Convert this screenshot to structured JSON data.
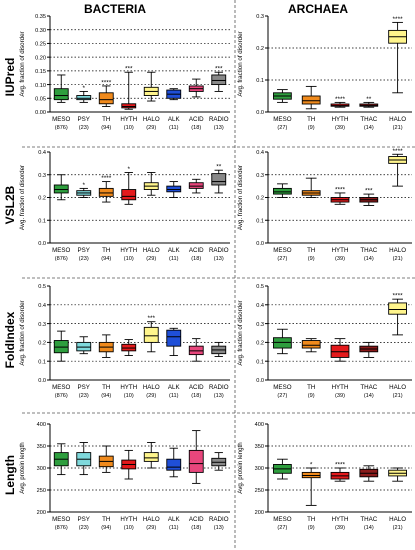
{
  "figure": {
    "column_titles": [
      "BACTERIA",
      "ARCHAEA"
    ],
    "row_titles": [
      "IUPred",
      "VSL2B",
      "FoldIndex",
      "Length"
    ]
  },
  "chart_data": [
    {
      "type": "box",
      "panel": "bacteria-iupred",
      "ylabel": "Avg. fraction of disorder",
      "ylim": [
        0,
        0.35
      ],
      "yticks": [
        0.0,
        0.05,
        0.1,
        0.15,
        0.2,
        0.25,
        0.3,
        0.35
      ],
      "ytick_labels": [
        "0.00",
        "0.05",
        "0.10",
        "0.15",
        "0.20",
        "0.25",
        "0.30",
        "0.35"
      ],
      "gridlines": [
        0.05,
        0.1,
        0.15,
        0.2,
        0.25,
        0.3
      ],
      "categories": [
        "MESO",
        "PSY",
        "TH",
        "HYTH",
        "HALO",
        "ALK",
        "ACID",
        "RADIO"
      ],
      "counts": [
        "(876)",
        "(23)",
        "(94)",
        "(10)",
        "(29)",
        "(11)",
        "(18)",
        "(13)"
      ],
      "colors": [
        "#2e9e3e",
        "#7fd9dc",
        "#f08a1c",
        "#e41a1c",
        "#fff58c",
        "#1f4fd8",
        "#e8467c",
        "#888888"
      ],
      "boxes": [
        {
          "min": 0.035,
          "q1": 0.045,
          "median": 0.06,
          "q3": 0.085,
          "max": 0.135,
          "stars": ""
        },
        {
          "min": 0.035,
          "q1": 0.045,
          "median": 0.05,
          "q3": 0.06,
          "max": 0.075,
          "stars": "*"
        },
        {
          "min": 0.02,
          "q1": 0.03,
          "median": 0.045,
          "q3": 0.07,
          "max": 0.095,
          "stars": "****"
        },
        {
          "min": 0.01,
          "q1": 0.015,
          "median": 0.02,
          "q3": 0.03,
          "max": 0.145,
          "stars": "***"
        },
        {
          "min": 0.04,
          "q1": 0.06,
          "median": 0.075,
          "q3": 0.09,
          "max": 0.145,
          "stars": ""
        },
        {
          "min": 0.045,
          "q1": 0.05,
          "median": 0.065,
          "q3": 0.08,
          "max": 0.085,
          "stars": ""
        },
        {
          "min": 0.055,
          "q1": 0.075,
          "median": 0.085,
          "q3": 0.095,
          "max": 0.12,
          "stars": ""
        },
        {
          "min": 0.075,
          "q1": 0.1,
          "median": 0.115,
          "q3": 0.135,
          "max": 0.145,
          "stars": "***"
        }
      ]
    },
    {
      "type": "box",
      "panel": "archaea-iupred",
      "ylabel": "Avg. fraction of disorder",
      "ylim": [
        0,
        0.3
      ],
      "yticks": [
        0.0,
        0.1,
        0.2,
        0.3
      ],
      "ytick_labels": [
        "0.0",
        "0.1",
        "0.2",
        "0.3"
      ],
      "gridlines": [
        0.1,
        0.2
      ],
      "categories": [
        "MESO",
        "TH",
        "HYTH",
        "THAC",
        "HALO"
      ],
      "counts": [
        "(27)",
        "(9)",
        "(39)",
        "(14)",
        "(21)"
      ],
      "colors": [
        "#2e9e3e",
        "#f08a1c",
        "#e41a1c",
        "#8b1a1a",
        "#fff58c"
      ],
      "boxes": [
        {
          "min": 0.03,
          "q1": 0.04,
          "median": 0.05,
          "q3": 0.06,
          "max": 0.07,
          "stars": ""
        },
        {
          "min": 0.01,
          "q1": 0.025,
          "median": 0.035,
          "q3": 0.05,
          "max": 0.08,
          "stars": ""
        },
        {
          "min": 0.015,
          "q1": 0.018,
          "median": 0.02,
          "q3": 0.025,
          "max": 0.03,
          "stars": "****"
        },
        {
          "min": 0.015,
          "q1": 0.018,
          "median": 0.02,
          "q3": 0.025,
          "max": 0.03,
          "stars": "**"
        },
        {
          "min": 0.06,
          "q1": 0.215,
          "median": 0.235,
          "q3": 0.255,
          "max": 0.28,
          "stars": "****"
        }
      ]
    },
    {
      "type": "box",
      "panel": "bacteria-vsl2b",
      "ylabel": "Avg. fraction of disorder",
      "ylim": [
        0,
        0.4
      ],
      "yticks": [
        0.0,
        0.1,
        0.2,
        0.3,
        0.4
      ],
      "ytick_labels": [
        "0.0",
        "0.1",
        "0.2",
        "0.3",
        "0.4"
      ],
      "gridlines": [
        0.1,
        0.2,
        0.3
      ],
      "categories": [
        "MESO",
        "PSY",
        "TH",
        "HYTH",
        "HALO",
        "ALK",
        "ACID",
        "RADIO"
      ],
      "counts": [
        "(876)",
        "(23)",
        "(94)",
        "(10)",
        "(29)",
        "(11)",
        "(18)",
        "(13)"
      ],
      "colors": [
        "#2e9e3e",
        "#7fd9dc",
        "#f08a1c",
        "#e41a1c",
        "#fff58c",
        "#1f4fd8",
        "#e8467c",
        "#888888"
      ],
      "boxes": [
        {
          "min": 0.19,
          "q1": 0.22,
          "median": 0.235,
          "q3": 0.255,
          "max": 0.3,
          "stars": ""
        },
        {
          "min": 0.2,
          "q1": 0.21,
          "median": 0.22,
          "q3": 0.23,
          "max": 0.24,
          "stars": "*"
        },
        {
          "min": 0.18,
          "q1": 0.205,
          "median": 0.22,
          "q3": 0.24,
          "max": 0.27,
          "stars": "****"
        },
        {
          "min": 0.17,
          "q1": 0.19,
          "median": 0.205,
          "q3": 0.235,
          "max": 0.31,
          "stars": "*"
        },
        {
          "min": 0.21,
          "q1": 0.235,
          "median": 0.25,
          "q3": 0.265,
          "max": 0.31,
          "stars": ""
        },
        {
          "min": 0.2,
          "q1": 0.225,
          "median": 0.235,
          "q3": 0.25,
          "max": 0.27,
          "stars": ""
        },
        {
          "min": 0.22,
          "q1": 0.24,
          "median": 0.25,
          "q3": 0.265,
          "max": 0.28,
          "stars": ""
        },
        {
          "min": 0.22,
          "q1": 0.255,
          "median": 0.27,
          "q3": 0.305,
          "max": 0.32,
          "stars": "**"
        }
      ]
    },
    {
      "type": "box",
      "panel": "archaea-vsl2b",
      "ylabel": "Avg. fraction of disorder",
      "ylim": [
        0,
        0.4
      ],
      "yticks": [
        0.0,
        0.1,
        0.2,
        0.3,
        0.4
      ],
      "ytick_labels": [
        "0.0",
        "0.1",
        "0.2",
        "0.3",
        "0.4"
      ],
      "gridlines": [
        0.1,
        0.2,
        0.3
      ],
      "categories": [
        "MESO",
        "TH",
        "HYTH",
        "THAC",
        "HALO"
      ],
      "counts": [
        "(27)",
        "(9)",
        "(39)",
        "(14)",
        "(21)"
      ],
      "colors": [
        "#2e9e3e",
        "#f08a1c",
        "#e41a1c",
        "#8b1a1a",
        "#fff58c"
      ],
      "boxes": [
        {
          "min": 0.2,
          "q1": 0.215,
          "median": 0.225,
          "q3": 0.24,
          "max": 0.26,
          "stars": ""
        },
        {
          "min": 0.2,
          "q1": 0.21,
          "median": 0.22,
          "q3": 0.23,
          "max": 0.285,
          "stars": ""
        },
        {
          "min": 0.17,
          "q1": 0.18,
          "median": 0.19,
          "q3": 0.2,
          "max": 0.22,
          "stars": "****"
        },
        {
          "min": 0.165,
          "q1": 0.18,
          "median": 0.19,
          "q3": 0.2,
          "max": 0.215,
          "stars": "***"
        },
        {
          "min": 0.25,
          "q1": 0.35,
          "median": 0.365,
          "q3": 0.38,
          "max": 0.39,
          "stars": "****"
        }
      ]
    },
    {
      "type": "box",
      "panel": "bacteria-foldindex",
      "ylabel": "Avg. fraction of disorder",
      "ylim": [
        0,
        0.5
      ],
      "yticks": [
        0.0,
        0.1,
        0.2,
        0.3,
        0.4,
        0.5
      ],
      "ytick_labels": [
        "0.0",
        "0.1",
        "0.2",
        "0.3",
        "0.4",
        "0.5"
      ],
      "gridlines": [
        0.1,
        0.2,
        0.3,
        0.4
      ],
      "categories": [
        "MESO",
        "PSY",
        "TH",
        "HYTH",
        "HALO",
        "ALK",
        "ACID",
        "RADIO"
      ],
      "counts": [
        "(876)",
        "(23)",
        "(94)",
        "(10)",
        "(29)",
        "(11)",
        "(18)",
        "(13)"
      ],
      "colors": [
        "#2e9e3e",
        "#7fd9dc",
        "#f08a1c",
        "#e41a1c",
        "#fff58c",
        "#1f4fd8",
        "#e8467c",
        "#888888"
      ],
      "boxes": [
        {
          "min": 0.1,
          "q1": 0.145,
          "median": 0.175,
          "q3": 0.21,
          "max": 0.26,
          "stars": ""
        },
        {
          "min": 0.14,
          "q1": 0.155,
          "median": 0.175,
          "q3": 0.2,
          "max": 0.23,
          "stars": ""
        },
        {
          "min": 0.12,
          "q1": 0.15,
          "median": 0.175,
          "q3": 0.2,
          "max": 0.24,
          "stars": ""
        },
        {
          "min": 0.13,
          "q1": 0.155,
          "median": 0.17,
          "q3": 0.19,
          "max": 0.215,
          "stars": ""
        },
        {
          "min": 0.15,
          "q1": 0.2,
          "median": 0.235,
          "q3": 0.28,
          "max": 0.31,
          "stars": "***"
        },
        {
          "min": 0.13,
          "q1": 0.18,
          "median": 0.23,
          "q3": 0.265,
          "max": 0.275,
          "stars": ""
        },
        {
          "min": 0.1,
          "q1": 0.135,
          "median": 0.155,
          "q3": 0.18,
          "max": 0.22,
          "stars": ""
        },
        {
          "min": 0.125,
          "q1": 0.14,
          "median": 0.16,
          "q3": 0.18,
          "max": 0.2,
          "stars": ""
        }
      ]
    },
    {
      "type": "box",
      "panel": "archaea-foldindex",
      "ylabel": "Avg. fraction of disorder",
      "ylim": [
        0,
        0.5
      ],
      "yticks": [
        0.0,
        0.1,
        0.2,
        0.3,
        0.4,
        0.5
      ],
      "ytick_labels": [
        "0.0",
        "0.1",
        "0.2",
        "0.3",
        "0.4",
        "0.5"
      ],
      "gridlines": [
        0.1,
        0.2,
        0.3,
        0.4
      ],
      "categories": [
        "MESO",
        "TH",
        "HYTH",
        "THAC",
        "HALO"
      ],
      "counts": [
        "(27)",
        "(9)",
        "(39)",
        "(14)",
        "(21)"
      ],
      "colors": [
        "#2e9e3e",
        "#f08a1c",
        "#e41a1c",
        "#8b1a1a",
        "#fff58c"
      ],
      "boxes": [
        {
          "min": 0.14,
          "q1": 0.17,
          "median": 0.2,
          "q3": 0.225,
          "max": 0.27,
          "stars": ""
        },
        {
          "min": 0.15,
          "q1": 0.17,
          "median": 0.185,
          "q3": 0.21,
          "max": 0.22,
          "stars": ""
        },
        {
          "min": 0.1,
          "q1": 0.12,
          "median": 0.15,
          "q3": 0.185,
          "max": 0.22,
          "stars": ""
        },
        {
          "min": 0.12,
          "q1": 0.15,
          "median": 0.165,
          "q3": 0.18,
          "max": 0.2,
          "stars": ""
        },
        {
          "min": 0.24,
          "q1": 0.35,
          "median": 0.375,
          "q3": 0.41,
          "max": 0.43,
          "stars": "****"
        }
      ]
    },
    {
      "type": "box",
      "panel": "bacteria-length",
      "ylabel": "Avg. protein length",
      "ylim": [
        200,
        400
      ],
      "yticks": [
        200,
        250,
        300,
        350,
        400
      ],
      "ytick_labels": [
        "200",
        "250",
        "300",
        "350",
        "400"
      ],
      "gridlines": [
        250,
        300,
        350
      ],
      "categories": [
        "MESO",
        "PSY",
        "TH",
        "HYTH",
        "HALO",
        "ALK",
        "ACID",
        "RADIO"
      ],
      "counts": [
        "(876)",
        "(23)",
        "(94)",
        "(10)",
        "(29)",
        "(11)",
        "(18)",
        "(13)"
      ],
      "colors": [
        "#2e9e3e",
        "#7fd9dc",
        "#f08a1c",
        "#e41a1c",
        "#fff58c",
        "#1f4fd8",
        "#e8467c",
        "#888888"
      ],
      "boxes": [
        {
          "min": 285,
          "q1": 305,
          "median": 320,
          "q3": 335,
          "max": 355,
          "stars": ""
        },
        {
          "min": 285,
          "q1": 305,
          "median": 320,
          "q3": 335,
          "max": 358,
          "stars": ""
        },
        {
          "min": 290,
          "q1": 303,
          "median": 315,
          "q3": 327,
          "max": 350,
          "stars": ""
        },
        {
          "min": 275,
          "q1": 298,
          "median": 308,
          "q3": 318,
          "max": 340,
          "stars": ""
        },
        {
          "min": 300,
          "q1": 315,
          "median": 323,
          "q3": 335,
          "max": 358,
          "stars": ""
        },
        {
          "min": 280,
          "q1": 295,
          "median": 302,
          "q3": 320,
          "max": 345,
          "stars": ""
        },
        {
          "min": 265,
          "q1": 290,
          "median": 310,
          "q3": 340,
          "max": 385,
          "stars": ""
        },
        {
          "min": 295,
          "q1": 305,
          "median": 313,
          "q3": 322,
          "max": 335,
          "stars": ""
        }
      ]
    },
    {
      "type": "box",
      "panel": "archaea-length",
      "ylabel": "Avg. protein length",
      "ylim": [
        200,
        400
      ],
      "yticks": [
        200,
        250,
        300,
        350,
        400
      ],
      "ytick_labels": [
        "200",
        "250",
        "300",
        "350",
        "400"
      ],
      "gridlines": [
        250,
        300,
        350
      ],
      "categories": [
        "MESO",
        "TH",
        "HYTH",
        "THAC",
        "HALO"
      ],
      "counts": [
        "(27)",
        "(9)",
        "(39)",
        "(14)",
        "(21)"
      ],
      "colors": [
        "#2e9e3e",
        "#f08a1c",
        "#e41a1c",
        "#8b1a1a",
        "#fff58c"
      ],
      "boxes": [
        {
          "min": 275,
          "q1": 288,
          "median": 298,
          "q3": 308,
          "max": 320,
          "stars": ""
        },
        {
          "min": 215,
          "q1": 278,
          "median": 283,
          "q3": 290,
          "max": 300,
          "stars": "*"
        },
        {
          "min": 270,
          "q1": 275,
          "median": 282,
          "q3": 290,
          "max": 300,
          "stars": "****"
        },
        {
          "min": 270,
          "q1": 280,
          "median": 288,
          "q3": 297,
          "max": 305,
          "stars": ""
        },
        {
          "min": 270,
          "q1": 282,
          "median": 288,
          "q3": 295,
          "max": 300,
          "stars": ""
        }
      ]
    }
  ]
}
